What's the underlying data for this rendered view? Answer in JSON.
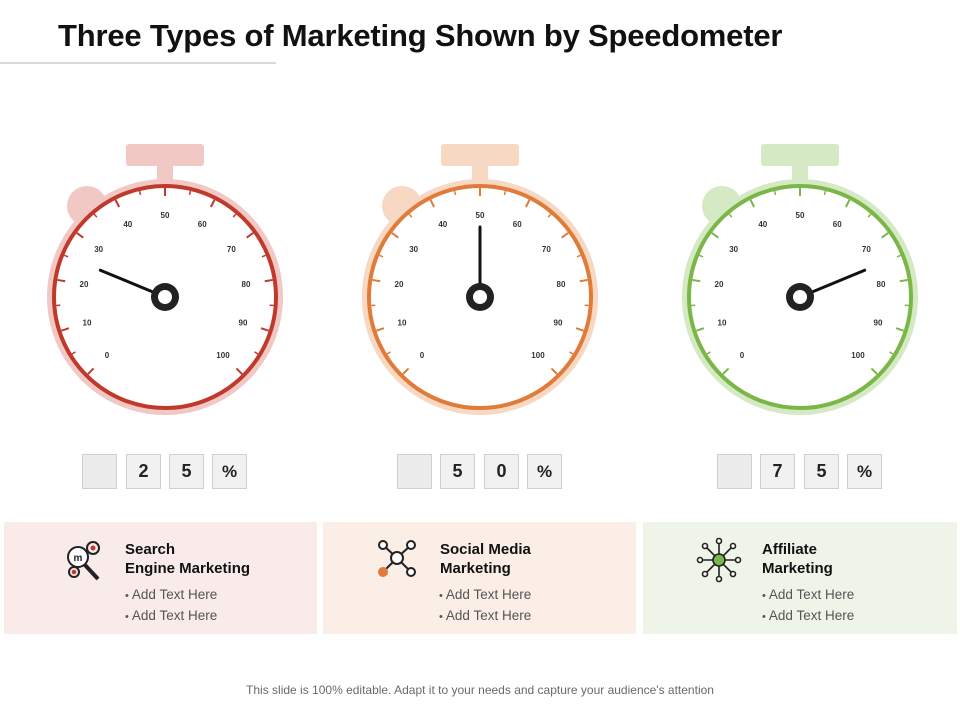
{
  "title": "Three Types of Marketing Shown by Speedometer",
  "gauges": [
    {
      "value_percent": 25,
      "digits": [
        "",
        "2",
        "5",
        "%"
      ],
      "ticks": [
        "0",
        "10",
        "20",
        "30",
        "40",
        "50",
        "60",
        "70",
        "80",
        "90",
        "100"
      ],
      "colors": {
        "ring": "#c0392b",
        "halo": "#f1c8c4",
        "crown": "#f1c8c4",
        "card_bg": "#f8ebea"
      }
    },
    {
      "value_percent": 50,
      "digits": [
        "",
        "5",
        "0",
        "%"
      ],
      "ticks": [
        "0",
        "10",
        "20",
        "30",
        "40",
        "50",
        "60",
        "70",
        "80",
        "90",
        "100"
      ],
      "colors": {
        "ring": "#e07b39",
        "halo": "#f7d8c2",
        "crown": "#f7d8c2",
        "card_bg": "#fbeee6"
      }
    },
    {
      "value_percent": 75,
      "digits": [
        "",
        "7",
        "5",
        "%"
      ],
      "ticks": [
        "0",
        "10",
        "20",
        "30",
        "40",
        "50",
        "60",
        "70",
        "80",
        "90",
        "100"
      ],
      "colors": {
        "ring": "#7ab648",
        "halo": "#d5e9c5",
        "crown": "#d5e9c5",
        "card_bg": "#eef5e8"
      }
    }
  ],
  "cards": [
    {
      "icon": "seo-magnifier-gear-icon",
      "heading_line1": "Search",
      "heading_line2": "Engine Marketing",
      "bullets": [
        "Add Text Here",
        "Add Text Here"
      ]
    },
    {
      "icon": "social-network-nodes-icon",
      "heading_line1": "Social Media",
      "heading_line2": "Marketing",
      "bullets": [
        "Add Text Here",
        "Add Text Here"
      ]
    },
    {
      "icon": "affiliate-network-icon",
      "heading_line1": "Affiliate",
      "heading_line2": "Marketing",
      "bullets": [
        "Add Text Here",
        "Add Text Here"
      ]
    }
  ],
  "footer": "This slide is 100% editable. Adapt it to your needs and capture your audience's attention"
}
